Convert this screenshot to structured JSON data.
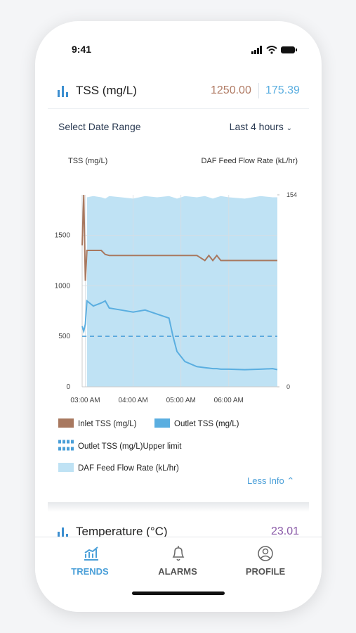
{
  "status_bar": {
    "time": "9:41"
  },
  "header": {
    "title": "TSS (mg/L)",
    "inlet_value": "1250.00",
    "outlet_value": "175.39"
  },
  "date_range": {
    "label": "Select Date Range",
    "value": "Last 4 hours"
  },
  "chart_data": {
    "type": "line",
    "y_label": "TSS (mg/L)",
    "y2_label": "DAF Feed Flow Rate (kL/hr)",
    "x": [
      "02:56 AM",
      "02:58 AM",
      "03:00 AM",
      "03:02 AM",
      "03:10 AM",
      "03:20 AM",
      "03:25 AM",
      "03:30 AM",
      "03:45 AM",
      "04:00 AM",
      "04:15 AM",
      "04:30 AM",
      "04:45 AM",
      "04:50 AM",
      "04:55 AM",
      "05:05 AM",
      "05:20 AM",
      "05:30 AM",
      "05:35 AM",
      "05:40 AM",
      "05:45 AM",
      "05:50 AM",
      "06:00 AM",
      "06:20 AM",
      "06:40 AM",
      "06:55 AM",
      "07:01 AM"
    ],
    "xlim": [
      "02:56 AM",
      "07:01 AM"
    ],
    "xticks": [
      "03:00 AM",
      "04:00 AM",
      "05:00 AM",
      "06:00 AM"
    ],
    "ylim": [
      0,
      1900
    ],
    "yticks": [
      0,
      500,
      1000,
      1500
    ],
    "y2lim": [
      0,
      154
    ],
    "y2ticks": [
      0,
      154
    ],
    "grid": true,
    "series": [
      {
        "name": "Inlet TSS (mg/L)",
        "color": "#a8785f",
        "values": [
          1400,
          1900,
          1050,
          1350,
          1350,
          1350,
          1310,
          1300,
          1300,
          1300,
          1300,
          1300,
          1300,
          1300,
          1300,
          1300,
          1300,
          1250,
          1300,
          1250,
          1300,
          1250,
          1250,
          1250,
          1250,
          1250,
          1250
        ]
      },
      {
        "name": "Outlet TSS (mg/L)",
        "color": "#5aaee0",
        "values": [
          600,
          550,
          620,
          850,
          800,
          830,
          850,
          780,
          760,
          740,
          760,
          720,
          680,
          500,
          350,
          250,
          200,
          190,
          185,
          180,
          180,
          175,
          175,
          170,
          175,
          180,
          170
        ]
      },
      {
        "name": "Outlet TSS (mg/L)Upper limit",
        "color": "#4a9fd8",
        "dashed": true,
        "values": [
          500,
          500,
          500,
          500,
          500,
          500,
          500,
          500,
          500,
          500,
          500,
          500,
          500,
          500,
          500,
          500,
          500,
          500,
          500,
          500,
          500,
          500,
          500,
          500,
          500,
          500,
          500
        ]
      },
      {
        "name": "DAF Feed Flow Rate (kL/hr)",
        "color": "#bfe2f4",
        "axis": "y2",
        "area": true,
        "values": [
          null,
          null,
          null,
          152,
          153,
          152,
          151,
          153,
          152,
          151,
          153,
          152,
          153,
          152,
          151,
          153,
          152,
          153,
          152,
          151,
          152,
          153,
          152,
          151,
          153,
          152,
          152
        ]
      }
    ]
  },
  "toggle": "Less Info",
  "next_card": {
    "title": "Temperature (°C)",
    "value": "23.01"
  },
  "tabs": [
    {
      "label": "TRENDS",
      "active": true
    },
    {
      "label": "ALARMS"
    },
    {
      "label": "PROFILE"
    }
  ]
}
